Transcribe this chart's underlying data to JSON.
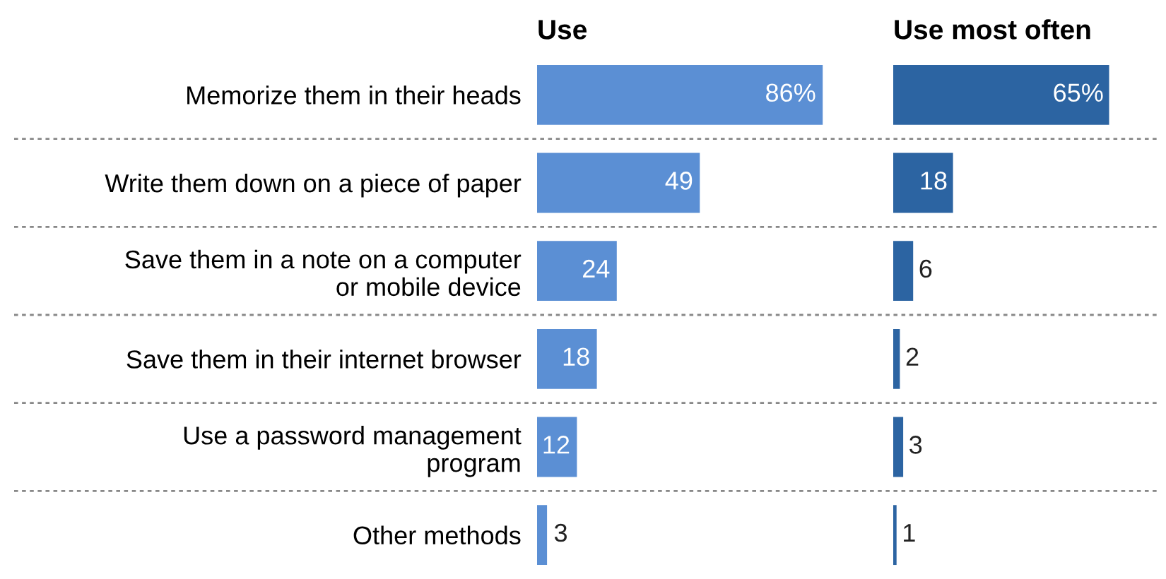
{
  "chart_data": [
    {
      "type": "bar",
      "orientation": "horizontal",
      "title": "Use",
      "categories": [
        "Memorize them in their heads",
        "Write them down on a piece of paper",
        "Save them in a note on a computer\nor mobile device",
        "Save them in their internet browser",
        "Use a password management\nprogram",
        "Other methods"
      ],
      "values": [
        86,
        49,
        24,
        18,
        12,
        3
      ],
      "value_labels": [
        "86%",
        "49",
        "24",
        "18",
        "12",
        "3"
      ],
      "color": "#5b8fd4",
      "tick_labels": "y",
      "grid": false,
      "legend": false
    },
    {
      "type": "bar",
      "orientation": "horizontal",
      "title": "Use most often",
      "categories": [
        null,
        null,
        null,
        null,
        null,
        null
      ],
      "values": [
        65,
        18,
        6,
        2,
        3,
        1
      ],
      "value_labels": [
        "65%",
        "18",
        "6",
        "2",
        "3",
        "1"
      ],
      "color": "#2c64a2",
      "tick_labels": false,
      "grid": false,
      "legend": false
    }
  ]
}
